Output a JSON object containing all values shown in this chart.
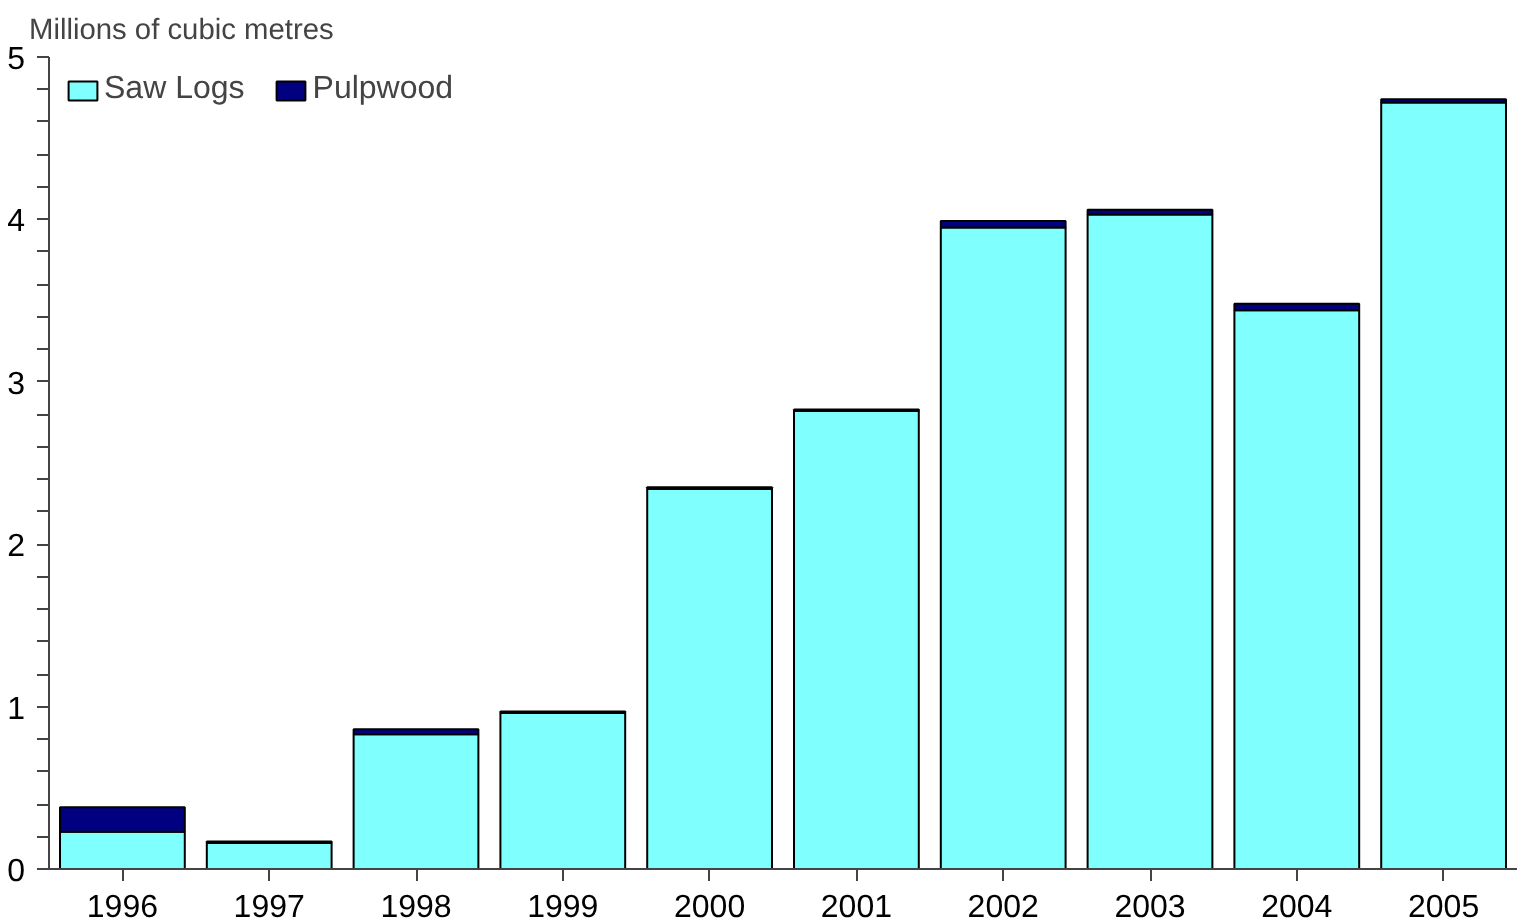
{
  "chart_data": {
    "type": "bar",
    "stacked": true,
    "ylabel": "Millions of cubic metres",
    "categories": [
      "1996",
      "1997",
      "1998",
      "1999",
      "2000",
      "2001",
      "2002",
      "2003",
      "2004",
      "2005"
    ],
    "series": [
      {
        "name": "Saw Logs",
        "color": "#80ffff",
        "values": [
          0.23,
          0.16,
          0.83,
          0.96,
          2.34,
          2.82,
          3.95,
          4.03,
          3.44,
          4.72
        ]
      },
      {
        "name": "Pulpwood",
        "color": "#000080",
        "values": [
          0.15,
          0.01,
          0.03,
          0.01,
          0.01,
          0.01,
          0.04,
          0.03,
          0.04,
          0.02
        ]
      }
    ],
    "ylim": [
      0,
      5
    ],
    "yticks": [
      0,
      {
        "value": 0.2,
        "label": null
      },
      {
        "value": 0.4,
        "label": null
      },
      {
        "value": 0.6,
        "label": null
      },
      {
        "value": 0.8,
        "label": null
      },
      1,
      {
        "value": 1.2,
        "label": null
      },
      {
        "value": 1.4,
        "label": null
      },
      {
        "value": 1.6,
        "label": null
      },
      {
        "value": 1.8,
        "label": null
      },
      2,
      {
        "value": 2.2,
        "label": null
      },
      {
        "value": 2.4,
        "label": null
      },
      {
        "value": 2.6,
        "label": null
      },
      {
        "value": 2.8,
        "label": null
      },
      3,
      {
        "value": 3.2,
        "label": null
      },
      {
        "value": 3.4,
        "label": null
      },
      {
        "value": 3.6,
        "label": null
      },
      {
        "value": 3.8,
        "label": null
      },
      4,
      {
        "value": 4.2,
        "label": null
      },
      {
        "value": 4.4,
        "label": null
      },
      {
        "value": 4.6,
        "label": null
      },
      {
        "value": 4.8,
        "label": null
      },
      5
    ],
    "grid": false,
    "legend": "top left"
  }
}
